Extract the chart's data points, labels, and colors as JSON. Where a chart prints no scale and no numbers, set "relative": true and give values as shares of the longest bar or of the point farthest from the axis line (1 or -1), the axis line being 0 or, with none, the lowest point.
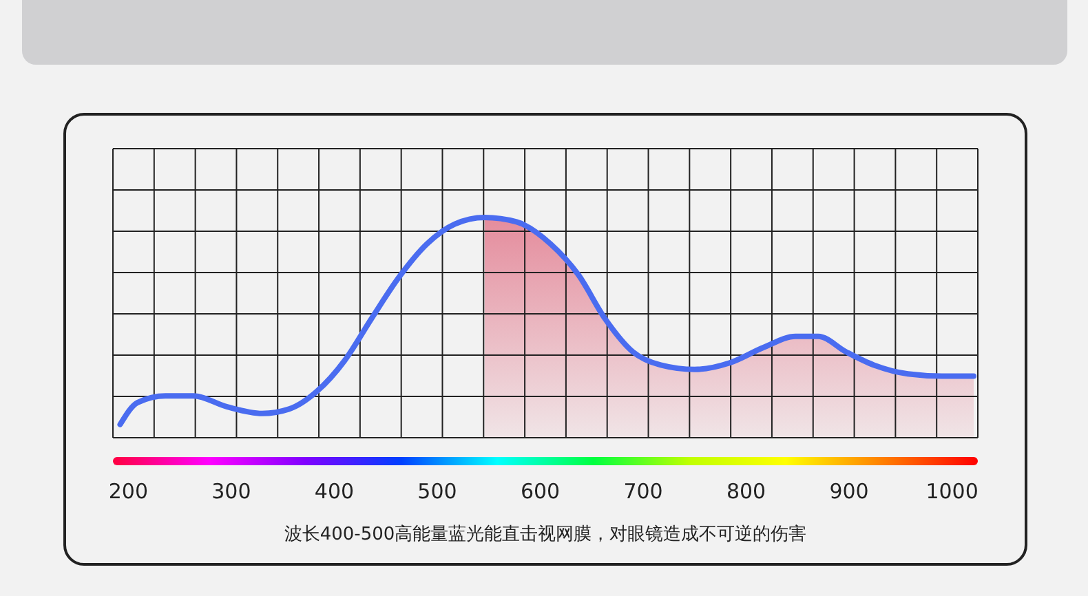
{
  "chart_data": {
    "type": "line",
    "relative": true,
    "grid": true,
    "xlim": [
      185,
      1025
    ],
    "xticks": [
      200,
      300,
      400,
      500,
      600,
      700,
      800,
      900,
      1000
    ],
    "x": [
      192,
      209,
      236,
      263,
      296,
      330,
      356,
      383,
      410,
      436,
      463,
      490,
      517,
      546,
      577,
      610,
      637,
      663,
      690,
      717,
      750,
      784,
      817,
      848,
      870,
      897,
      924,
      957,
      990,
      1021
    ],
    "series": [
      {
        "color": "#4a6cf0",
        "values": [
          0.06,
          0.16,
          0.19,
          0.19,
          0.14,
          0.11,
          0.13,
          0.21,
          0.35,
          0.54,
          0.73,
          0.88,
          0.97,
          1,
          0.98,
          0.88,
          0.74,
          0.54,
          0.39,
          0.33,
          0.31,
          0.34,
          0.41,
          0.46,
          0.46,
          0.39,
          0.33,
          0.29,
          0.28,
          0.28
        ]
      }
    ],
    "annotations": [
      "波长400-500高能量蓝光能直击视网膜，对眼镜造成不可逆的伤害"
    ]
  }
}
